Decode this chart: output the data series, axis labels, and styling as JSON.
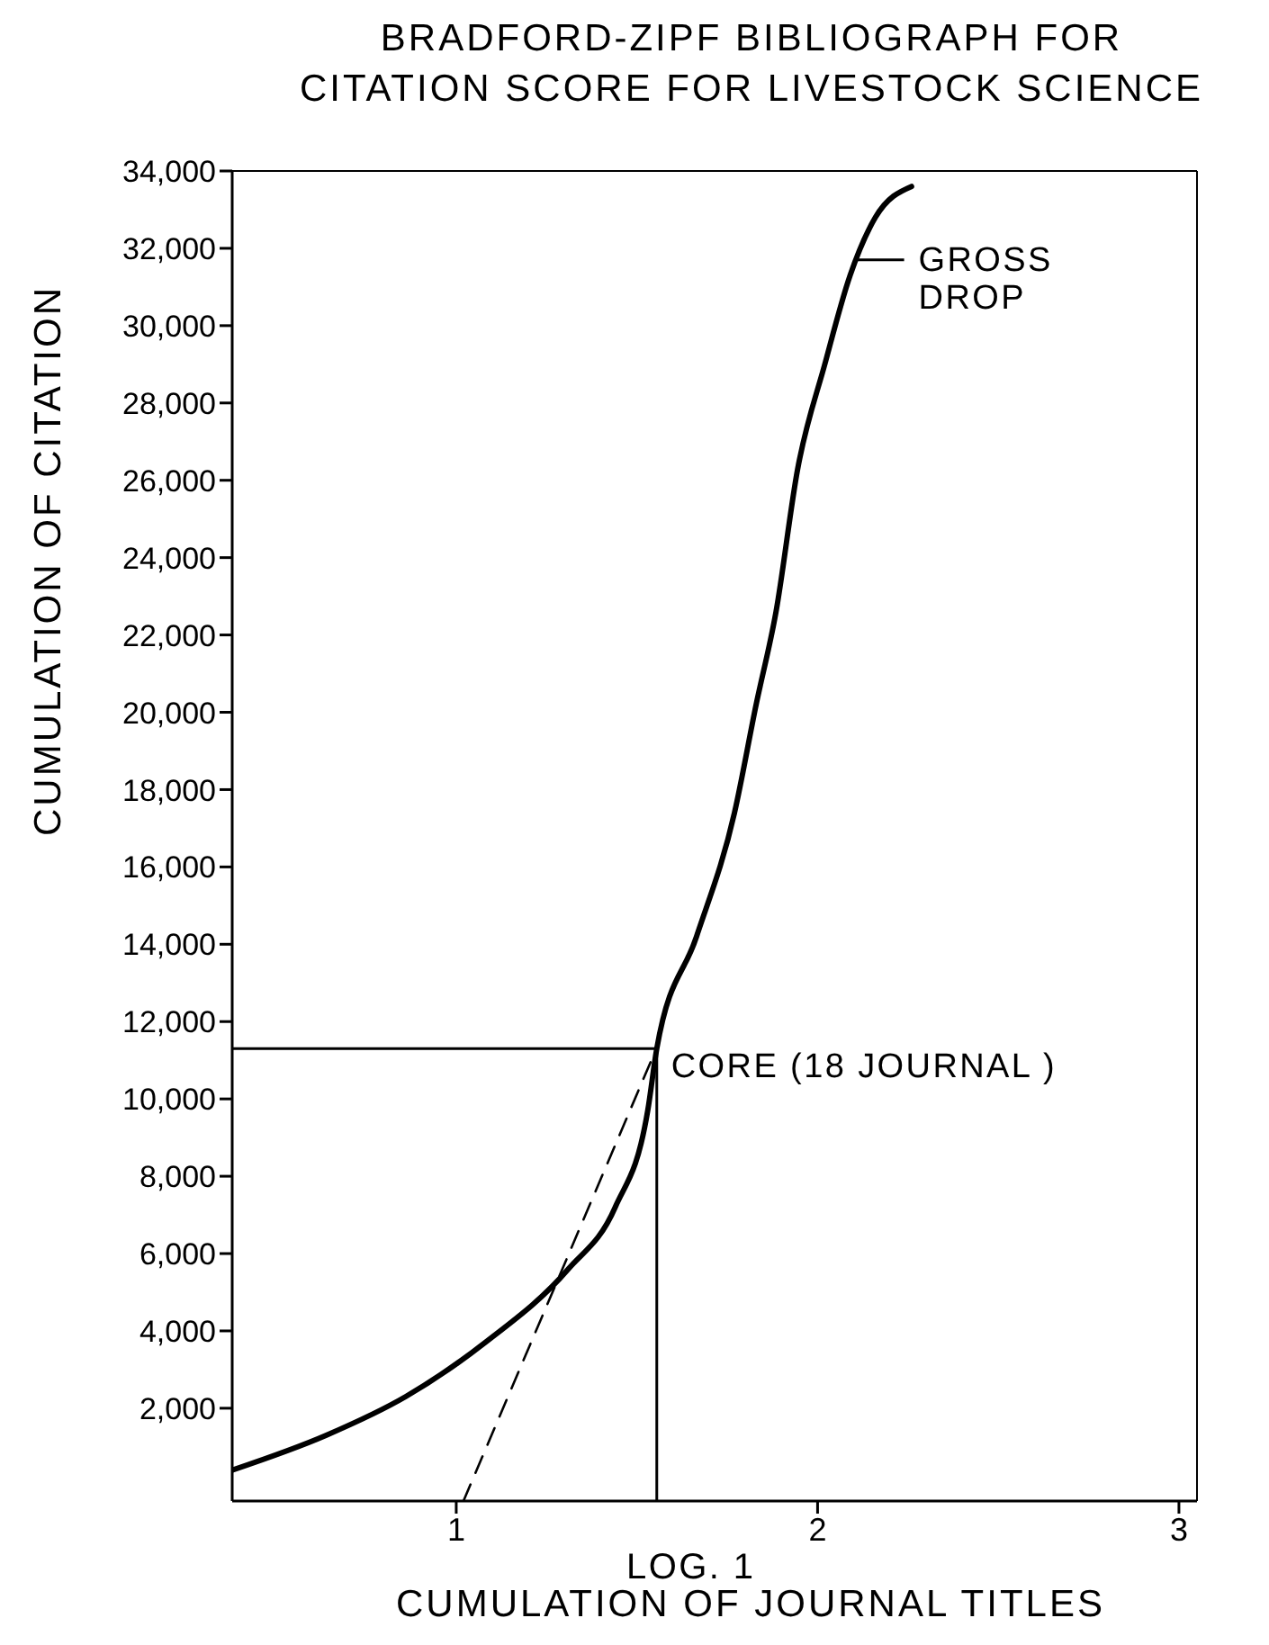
{
  "chart_data": {
    "type": "line",
    "title": "BRADFORD-ZIPF BIBLIOGRAPH FOR\nCITATION SCORE FOR LIVESTOCK SCIENCE",
    "xlabel": "CUMULATION OF JOURNAL TITLES",
    "ylabel": "CUMULATION OF CITATION",
    "annotations": [
      "LOG. 1",
      {
        "text": "CORE (18 JOURNAL )",
        "x": 1.555,
        "y": 11300
      },
      {
        "text": "GROSS\nDROP",
        "x": 2.11,
        "y": 31700
      }
    ],
    "xlim": [
      0.38,
      3.05
    ],
    "xticks": [
      1,
      2,
      3
    ],
    "ylim": [
      -400,
      34000
    ],
    "yticks": [
      {
        "value": 2000,
        "label": "2,000"
      },
      {
        "value": 4000,
        "label": "4,000"
      },
      {
        "value": 6000,
        "label": "6,000"
      },
      {
        "value": 8000,
        "label": "8,000"
      },
      {
        "value": 10000,
        "label": "10,000"
      },
      {
        "value": 12000,
        "label": "12,000"
      },
      {
        "value": 14000,
        "label": "14,000"
      },
      {
        "value": 16000,
        "label": "16,000"
      },
      {
        "value": 18000,
        "label": "18,000"
      },
      {
        "value": 20000,
        "label": "20,000"
      },
      {
        "value": 22000,
        "label": "22,000"
      },
      {
        "value": 24000,
        "label": "24,000"
      },
      {
        "value": 26000,
        "label": "26,000"
      },
      {
        "value": 28000,
        "label": "28,000"
      },
      {
        "value": 30000,
        "label": "30,000"
      },
      {
        "value": 32000,
        "label": "32,000"
      },
      {
        "value": 34000,
        "label": "34,000"
      }
    ],
    "series": [
      {
        "color": "#000000",
        "x": [
          0.38,
          0.64,
          0.86,
          1.08,
          1.31,
          1.44,
          1.53,
          1.555,
          1.665,
          1.77,
          1.83,
          1.885,
          1.945,
          2.02,
          2.09,
          2.16,
          2.26
        ],
        "values": [
          400,
          1300,
          2300,
          3700,
          5600,
          7200,
          9700,
          11300,
          14200,
          17400,
          20200,
          22600,
          26300,
          29000,
          31300,
          32800,
          33600
        ]
      },
      {
        "color": "#000000",
        "line_style": "dashed",
        "x": [
          1.02,
          1.54
        ],
        "values": [
          -400,
          11000
        ]
      }
    ],
    "ref_lines": [
      {
        "axis": "x",
        "value": 1.555
      },
      {
        "axis": "y",
        "value": 11300
      }
    ],
    "marker": "none",
    "line_style": "solid",
    "grid": false,
    "legend": false
  }
}
